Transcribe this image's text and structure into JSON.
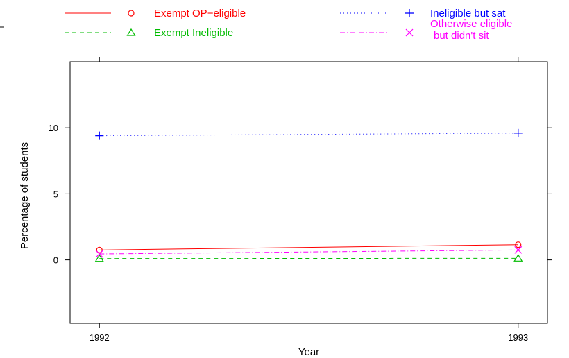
{
  "chart_data": {
    "type": "line",
    "x": [
      1992,
      1993
    ],
    "xlabel": "Year",
    "ylabel": "Percentage of students",
    "xlim": [
      1991.93,
      1993.07
    ],
    "ylim": [
      -4.8,
      15
    ],
    "xticks": [
      1992,
      1993
    ],
    "xtick_labels": [
      "1992",
      "1993"
    ],
    "yticks": [
      0,
      5,
      10
    ],
    "ytick_labels": [
      "0",
      "5",
      "10"
    ],
    "grid": false,
    "legend_position": "top",
    "series": [
      {
        "name": "Exempt OP−eligible",
        "values": [
          0.75,
          1.15
        ],
        "color": "#ff0000",
        "line_style": "solid",
        "marker": "circle"
      },
      {
        "name": "Exempt Ineligible",
        "values": [
          0.1,
          0.12
        ],
        "color": "#00bb00",
        "line_style": "dashed",
        "marker": "triangle"
      },
      {
        "name": "Ineligible but sat",
        "values": [
          9.4,
          9.6
        ],
        "color": "#0000ff",
        "line_style": "dotted",
        "marker": "plus"
      },
      {
        "name": "Otherwise eligible\nbut didn't sit",
        "values": [
          0.45,
          0.75
        ],
        "color": "#ff00ff",
        "line_style": "dashdot",
        "marker": "cross"
      }
    ]
  }
}
